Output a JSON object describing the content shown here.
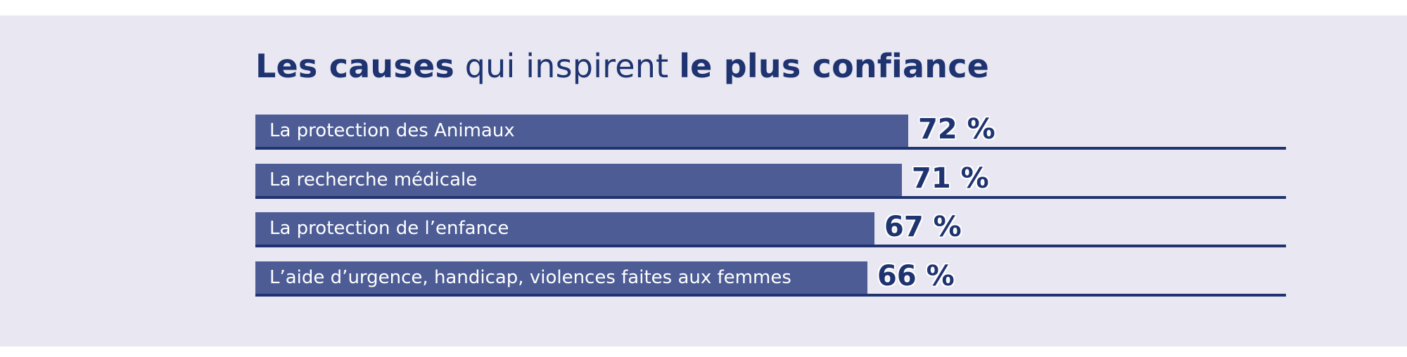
{
  "title": {
    "bold_start": "Les causes",
    "regular_middle": " qui inspirent ",
    "bold_end": "le plus confiance"
  },
  "colors": {
    "page_margin": "#FFFFFF",
    "panel_background": "#E8E7F2",
    "bar_fill": "#4D5C95",
    "navy_text_and_lines": "#1E3370",
    "bar_label_text": "#FFFFFF"
  },
  "chart_data": {
    "type": "bar",
    "orientation": "horizontal",
    "title": "Les causes qui inspirent le plus confiance",
    "categories": [
      "La protection des Animaux",
      "La recherche médicale",
      "La protection de l’enfance",
      "L’aide d’urgence, handicap, violences faites aux femmes"
    ],
    "values": [
      72,
      71,
      67,
      66
    ],
    "value_labels": [
      "72 %",
      "71 %",
      "67 %",
      "66 %"
    ],
    "unit": "%",
    "xlim": [
      0,
      100
    ],
    "axis_shown": false,
    "gridlines": false,
    "legend": false,
    "value_label_position": "right-of-bar",
    "category_label_position": "inside-bar"
  }
}
